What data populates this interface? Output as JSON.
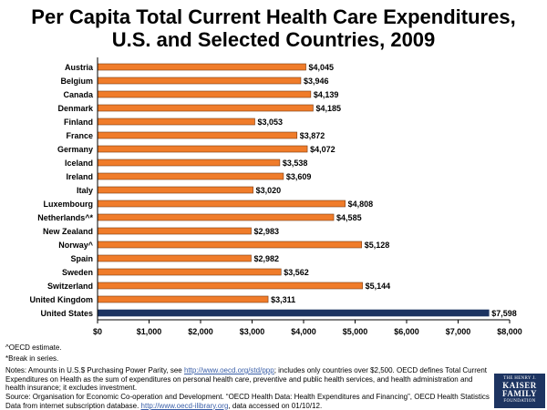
{
  "chart_data": {
    "type": "bar",
    "orientation": "horizontal",
    "title": "Per Capita Total Current Health Care Expenditures, U.S. and Selected Countries, 2009",
    "title_line1": "Per Capita Total Current Health Care Expenditures,",
    "title_line2": "U.S. and Selected Countries, 2009",
    "categories": [
      "Austria",
      "Belgium",
      "Canada",
      "Denmark",
      "Finland",
      "France",
      "Germany",
      "Iceland",
      "Ireland",
      "Italy",
      "Luxembourg",
      "Netherlands^*",
      "New Zealand",
      "Norway^",
      "Spain",
      "Sweden",
      "Switzerland",
      "United Kingdom",
      "United States"
    ],
    "values": [
      4045,
      3946,
      4139,
      4185,
      3053,
      3872,
      4072,
      3538,
      3609,
      3020,
      4808,
      4585,
      2983,
      5128,
      2982,
      3562,
      5144,
      3311,
      7598
    ],
    "value_labels": [
      "$4,045",
      "$3,946",
      "$4,139",
      "$4,185",
      "$3,053",
      "$3,872",
      "$4,072",
      "$3,538",
      "$3,609",
      "$3,020",
      "$4,808",
      "$4,585",
      "$2,983",
      "$5,128",
      "$2,982",
      "$3,562",
      "$5,144",
      "$3,311",
      "$7,598"
    ],
    "highlight_category": "United States",
    "xlim": [
      0,
      8000
    ],
    "x_ticks": [
      0,
      1000,
      2000,
      3000,
      4000,
      5000,
      6000,
      7000,
      8000
    ],
    "x_tick_labels": [
      "$0",
      "$1,000",
      "$2,000",
      "$3,000",
      "$4,000",
      "$5,000",
      "$6,000",
      "$7,000",
      "$8,000"
    ],
    "xlabel": "",
    "ylabel": "",
    "grid": false,
    "colors": {
      "bar": "#f07c2a",
      "bar_stroke": "#7a3a10",
      "highlight": "#1d3461",
      "axis": "#000000"
    }
  },
  "footnotes": {
    "oecd_estimate": "^OECD estimate.",
    "break_in_series": "*Break in series.",
    "notes_pre": "Notes:  Amounts in U.S.$ Purchasing Power Parity, see ",
    "notes_link": "http://www.oecd.org/std/ppp",
    "notes_post": "; includes only countries over $2,500.  OECD defines Total Current Expenditures on Health as the sum of expenditures on personal health care, preventive and public health services, and health administration and health insurance; it excludes investment.",
    "source_pre": "Source:  Organisation for Economic Co-operation and Development. “OECD Health Data: Health Expenditures and Financing”, OECD Health Statistics Data from internet subscription database. ",
    "source_link": "http://www.oecd-ilibrary.org",
    "source_post": ", data accessed on 01/10/12."
  },
  "logo": {
    "line1": "THE HENRY J.",
    "line2": "KAISER FAMILY",
    "line3": "FOUNDATION"
  }
}
